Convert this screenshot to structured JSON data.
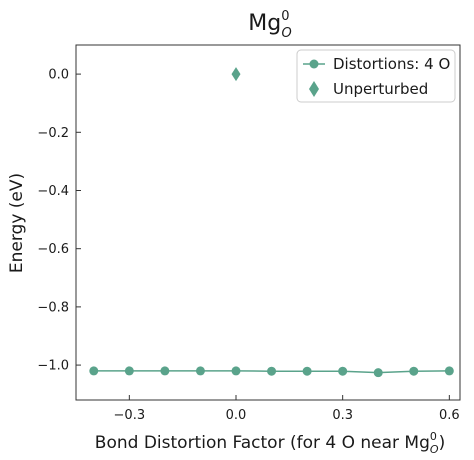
{
  "chart_data": {
    "type": "line",
    "title": {
      "base": "Mg",
      "sup": "0",
      "sub": "O"
    },
    "xlabel": {
      "text": "Bond Distortion Factor (for 4 O near Mg",
      "sup": "0",
      "sub": "O",
      "close": ")"
    },
    "ylabel": "Energy (eV)",
    "xlim": [
      -0.45,
      0.63
    ],
    "ylim": [
      -1.12,
      0.1
    ],
    "xticks": [
      -0.3,
      0.0,
      0.3,
      0.6
    ],
    "xtick_labels": [
      "−0.3",
      "0.0",
      "0.3",
      "0.6"
    ],
    "yticks": [
      0.0,
      -0.2,
      -0.4,
      -0.6,
      -0.8,
      -1.0
    ],
    "ytick_labels": [
      "0.0",
      "−0.2",
      "−0.4",
      "−0.6",
      "−0.8",
      "−1.0"
    ],
    "grid": false,
    "legend_position": "top-right",
    "color": "#5aa38b",
    "series": [
      {
        "name": "Distortions: 4 O",
        "marker": "circle",
        "x": [
          -0.4,
          -0.3,
          -0.2,
          -0.1,
          0.0,
          0.1,
          0.2,
          0.3,
          0.4,
          0.5,
          0.6
        ],
        "y": [
          -1.02,
          -1.02,
          -1.02,
          -1.02,
          -1.02,
          -1.021,
          -1.021,
          -1.021,
          -1.026,
          -1.021,
          -1.02
        ]
      },
      {
        "name": "Unperturbed",
        "marker": "diamond",
        "x": [
          0.0
        ],
        "y": [
          0.0
        ]
      }
    ]
  }
}
